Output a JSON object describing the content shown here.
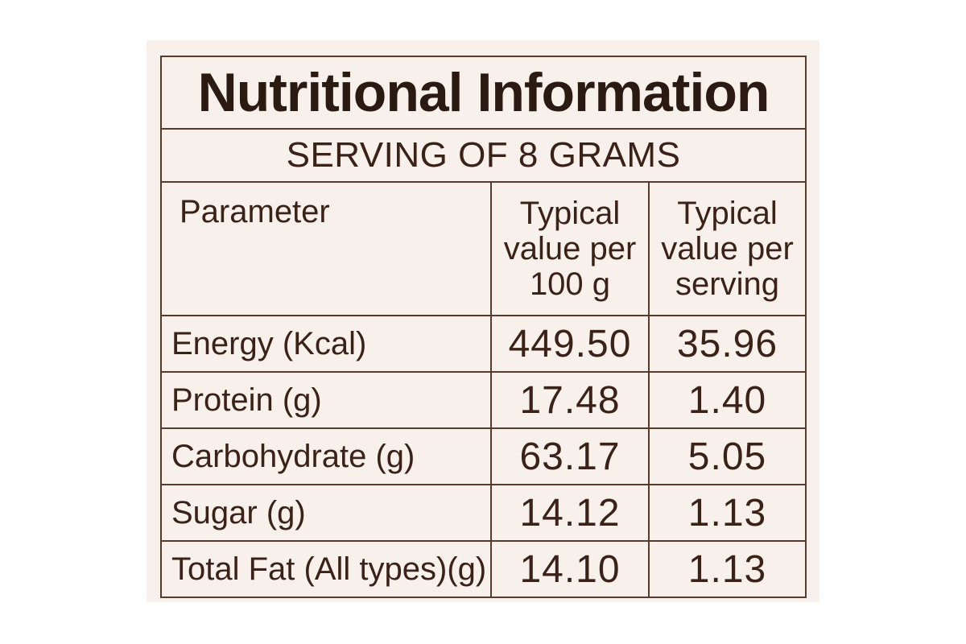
{
  "label": {
    "title": "Nutritional Information",
    "serving": "SERVING OF 8 GRAMS",
    "headers": {
      "parameter": "Parameter",
      "per100": [
        "Typical",
        "value per",
        "100 g"
      ],
      "perServing": [
        "Typical",
        "value per",
        "serving"
      ]
    },
    "rows": [
      {
        "parameter": "Energy (Kcal)",
        "per100": "449.50",
        "perServing": "35.96"
      },
      {
        "parameter": "Protein (g)",
        "per100": "17.48",
        "perServing": "1.40"
      },
      {
        "parameter": "Carbohydrate (g)",
        "per100": "63.17",
        "perServing": "5.05"
      },
      {
        "parameter": "Sugar (g)",
        "per100": "14.12",
        "perServing": "1.13"
      },
      {
        "parameter": "Total Fat (All types)(g)",
        "per100": "14.10",
        "perServing": "1.13"
      }
    ]
  }
}
